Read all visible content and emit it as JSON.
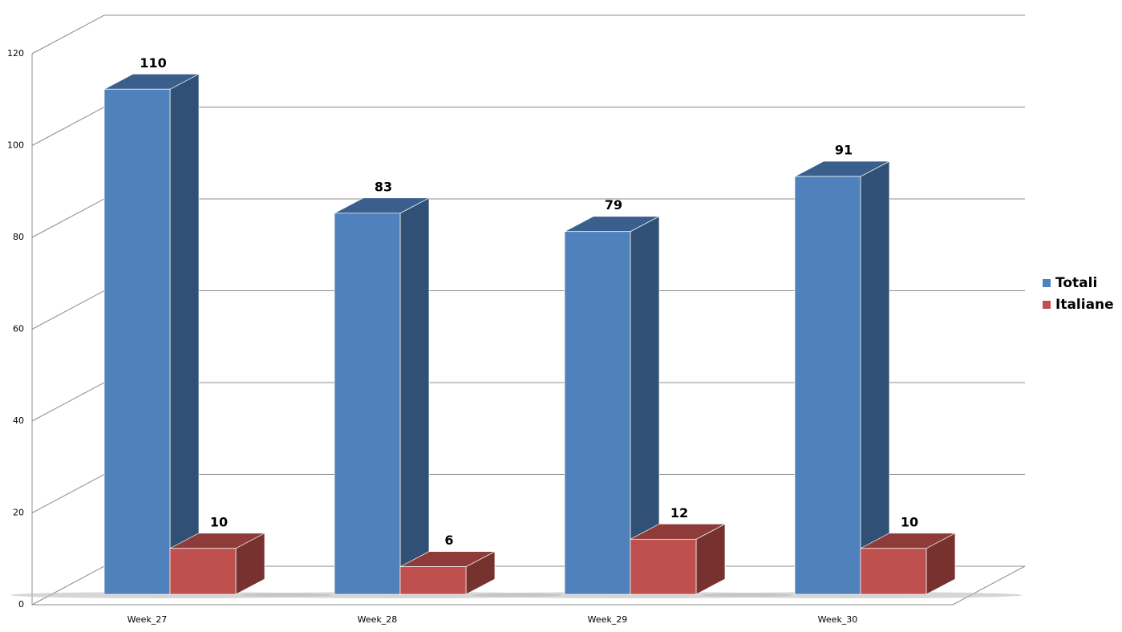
{
  "chart_data": {
    "type": "bar3d",
    "categories": [
      "Week_27",
      "Week_28",
      "Week_29",
      "Week_30"
    ],
    "series": [
      {
        "name": "Totali",
        "color": "#4f81bd",
        "values": [
          110,
          83,
          79,
          91
        ]
      },
      {
        "name": "Italiane",
        "color": "#c0504d",
        "values": [
          10,
          6,
          12,
          10
        ]
      }
    ],
    "ylim": [
      0,
      120
    ],
    "yticks": [
      0,
      20,
      40,
      60,
      80,
      100,
      120
    ],
    "grid": true,
    "legend": "right"
  }
}
